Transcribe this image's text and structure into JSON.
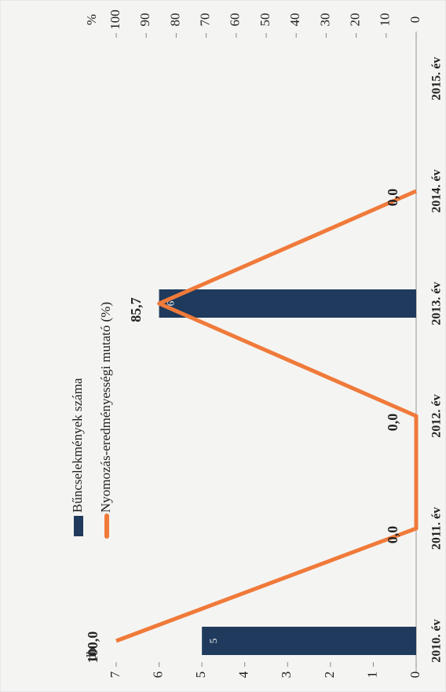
{
  "chart_data": {
    "type": "bar-line",
    "categories": [
      "2010. év",
      "2011. év",
      "2012. év",
      "2013. év",
      "2014. év",
      "2015. év"
    ],
    "series": [
      {
        "name": "Bűncselekmények száma",
        "type": "bar",
        "color": "#1f3a5c",
        "values": [
          5,
          null,
          null,
          6,
          null,
          null
        ]
      },
      {
        "name": "Nyomozás-eredményességi mutató (%)",
        "type": "line",
        "axis": "y2",
        "color": "#f07a3a",
        "values": [
          100.0,
          0.0,
          0.0,
          85.7,
          0.0,
          null
        ],
        "value_labels": [
          "100,0",
          "0,0",
          "0,0",
          "85,7",
          "0,0",
          null
        ]
      }
    ],
    "ylabel": "db",
    "ylim": [
      0,
      7
    ],
    "yticks": [
      0,
      1,
      2,
      3,
      4,
      5,
      6,
      7
    ],
    "y2label": "%",
    "y2lim": [
      0,
      100
    ],
    "y2ticks": [
      0,
      10,
      20,
      30,
      40,
      50,
      60,
      70,
      80,
      90,
      100
    ],
    "rotation": -90
  }
}
